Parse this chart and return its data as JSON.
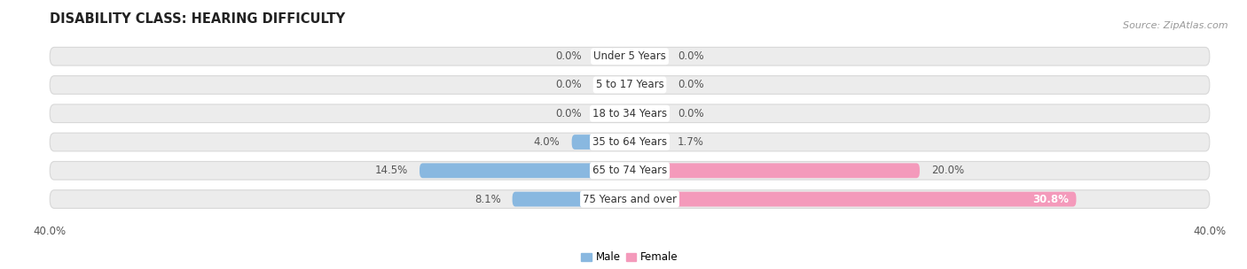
{
  "title": "DISABILITY CLASS: HEARING DIFFICULTY",
  "source": "Source: ZipAtlas.com",
  "categories": [
    "Under 5 Years",
    "5 to 17 Years",
    "18 to 34 Years",
    "35 to 64 Years",
    "65 to 74 Years",
    "75 Years and over"
  ],
  "male_values": [
    0.0,
    0.0,
    0.0,
    4.0,
    14.5,
    8.1
  ],
  "female_values": [
    0.0,
    0.0,
    0.0,
    1.7,
    20.0,
    30.8
  ],
  "male_color": "#89b8e0",
  "female_color": "#f49abb",
  "row_bg_color": "#ececec",
  "row_border_color": "#d8d8d8",
  "axis_limit": 40.0,
  "bar_height": 0.52,
  "min_bar_val": 2.5,
  "title_fontsize": 10.5,
  "label_fontsize": 8.5,
  "value_fontsize": 8.5,
  "tick_fontsize": 8.5,
  "source_fontsize": 8.0
}
